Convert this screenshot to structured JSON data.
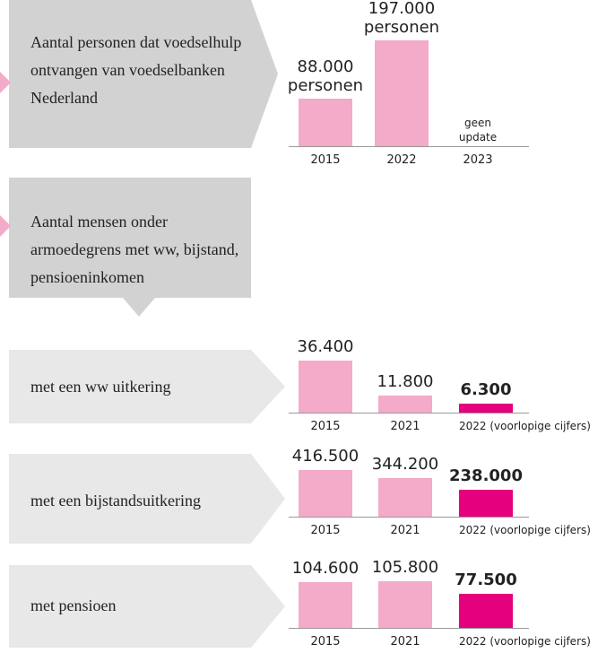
{
  "section_heading": "Aantal mensen onder armoedegrens met ww, bijstand, pensioeninkomen",
  "chart_data": [
    {
      "type": "bar",
      "title": "Aantal personen dat voedselhulp ontvangen van voedselbanken Nederland",
      "categories": [
        "2015",
        "2022",
        "2023"
      ],
      "values": [
        88000,
        197000,
        null
      ],
      "value_labels": [
        "88.000",
        "197.000",
        null
      ],
      "value_unit": "personen",
      "annotation": "geen update",
      "colors": [
        "#f4aac9",
        "#f4aac9",
        "#f4aac9"
      ]
    },
    {
      "type": "bar",
      "title": "met een ww uitkering",
      "categories": [
        "2015",
        "2021",
        "2022 (voorlopige cijfers)"
      ],
      "values": [
        36400,
        11800,
        6300
      ],
      "value_labels": [
        "36.400",
        "11.800",
        "6.300"
      ],
      "colors": [
        "#f4aac9",
        "#f4aac9",
        "#e5007d"
      ]
    },
    {
      "type": "bar",
      "title": "met een bijstandsuitkering",
      "categories": [
        "2015",
        "2021",
        "2022 (voorlopige cijfers)"
      ],
      "values": [
        416500,
        344200,
        238000
      ],
      "value_labels": [
        "416.500",
        "344.200",
        "238.000"
      ],
      "colors": [
        "#f4aac9",
        "#f4aac9",
        "#e5007d"
      ]
    },
    {
      "type": "bar",
      "title": "met pensioen",
      "categories": [
        "2015",
        "2021",
        "2022 (voorlopige cijfers)"
      ],
      "values": [
        104600,
        105800,
        77500
      ],
      "value_labels": [
        "104.600",
        "105.800",
        "77.500"
      ],
      "colors": [
        "#f4aac9",
        "#f4aac9",
        "#e5007d"
      ]
    }
  ]
}
